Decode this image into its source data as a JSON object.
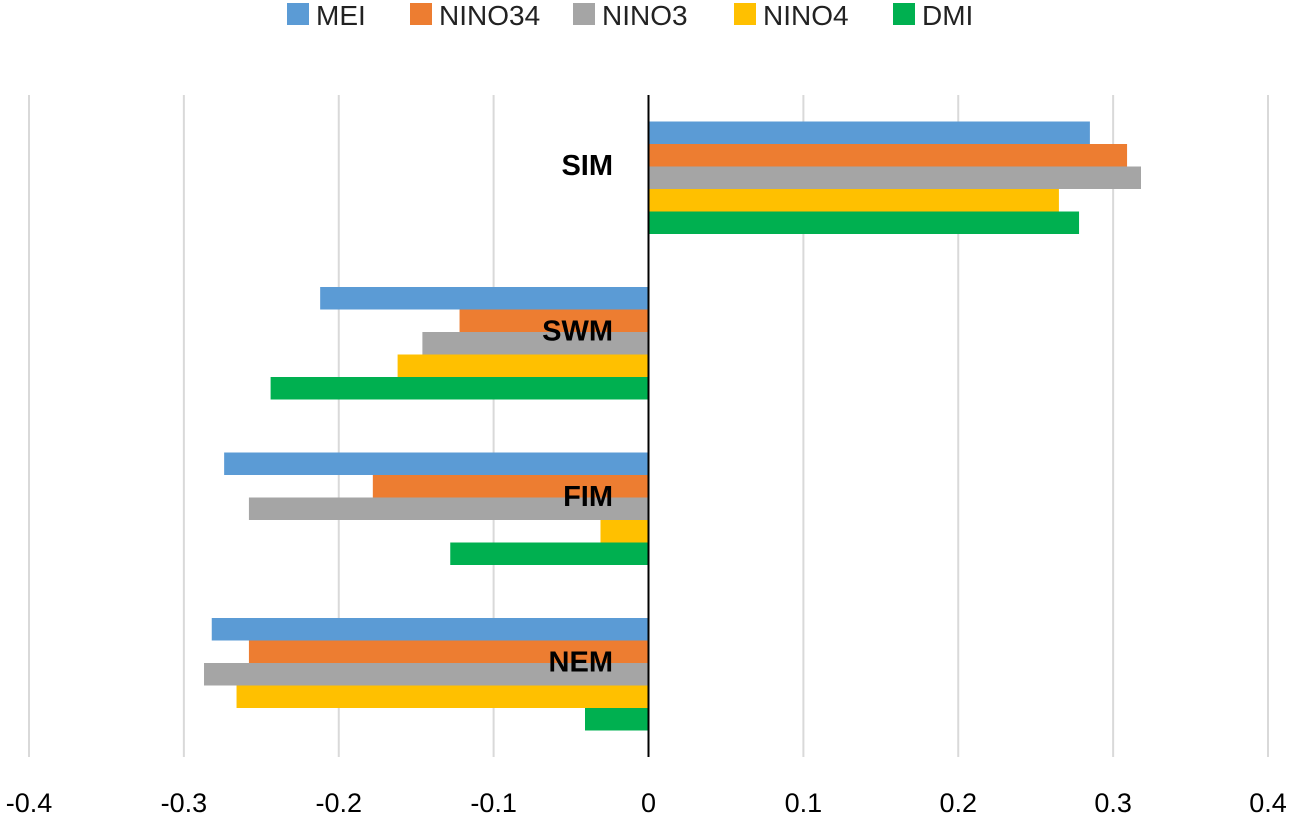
{
  "chart_data": {
    "type": "bar",
    "orientation": "horizontal",
    "title": "",
    "xlabel": "",
    "ylabel": "",
    "xlim": [
      -0.4,
      0.4
    ],
    "x_ticks": [
      "-0.4",
      "-0.3",
      "-0.2",
      "-0.1",
      "0",
      "0.1",
      "0.2",
      "0.3",
      "0.4"
    ],
    "grid": "vertical",
    "legend_position": "top",
    "categories": [
      "SIM",
      "SWM",
      "FIM",
      "NEM"
    ],
    "series": [
      {
        "name": "MEI",
        "color": "#5B9BD5",
        "values": [
          0.285,
          -0.212,
          -0.274,
          -0.282
        ]
      },
      {
        "name": "NINO34",
        "color": "#ED7D31",
        "values": [
          0.309,
          -0.122,
          -0.178,
          -0.258
        ]
      },
      {
        "name": "NINO3",
        "color": "#A5A5A5",
        "values": [
          0.318,
          -0.146,
          -0.258,
          -0.287
        ]
      },
      {
        "name": "NINO4",
        "color": "#FFC000",
        "values": [
          0.265,
          -0.162,
          -0.031,
          -0.266
        ]
      },
      {
        "name": "DMI",
        "color": "#00B050",
        "values": [
          0.278,
          -0.244,
          -0.128,
          -0.041
        ]
      }
    ]
  }
}
